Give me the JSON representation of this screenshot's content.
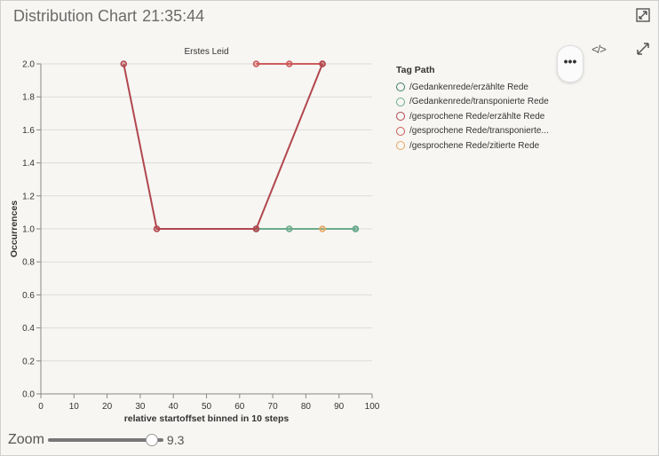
{
  "window": {
    "title": "Distribution Chart",
    "time": "21:35:44"
  },
  "icons": {
    "minimize": "minimize-icon",
    "code": "code-icon",
    "expand": "expand-icon",
    "menu": "more-options-icon"
  },
  "menu_label": "•••",
  "code_label": "</>",
  "zoom": {
    "label": "Zoom",
    "value": "9.3",
    "fraction": 0.93
  },
  "legend": {
    "title": "Tag Path",
    "items": [
      {
        "label": "/Gedankenrede/erzählte Rede",
        "color": "#3d7d6f"
      },
      {
        "label": "/Gedankenrede/transponierte Rede",
        "color": "#6bab8b"
      },
      {
        "label": "/gesprochene Rede/erzählte Rede",
        "color": "#b2474e"
      },
      {
        "label": "/gesprochene Rede/transponierte...",
        "color": "#cd5c5c"
      },
      {
        "label": "/gesprochene Rede/zitierte Rede",
        "color": "#e6a861"
      }
    ]
  },
  "chart_data": {
    "type": "line",
    "title": "Erstes Leid",
    "xlabel": "relative startoffset binned in 10 steps",
    "ylabel": "Occurrences",
    "xlim": [
      0,
      100
    ],
    "ylim": [
      0,
      2
    ],
    "xticks": [
      0,
      10,
      20,
      30,
      40,
      50,
      60,
      70,
      80,
      90,
      100
    ],
    "yticks": [
      0.0,
      0.2,
      0.4,
      0.6,
      0.8,
      1.0,
      1.2,
      1.4,
      1.6,
      1.8,
      2.0
    ],
    "ytick_labels": [
      "0.0",
      "0.2",
      "0.4",
      "0.6",
      "0.8",
      "1.0",
      "1.2",
      "1.4",
      "1.6",
      "1.8",
      "2.0"
    ],
    "grid": true,
    "legend_position": "right",
    "series": [
      {
        "name": "/Gedankenrede/erzählte Rede",
        "color": "#3d7d6f",
        "points": [
          [
            65,
            1
          ],
          [
            95,
            1
          ]
        ]
      },
      {
        "name": "/Gedankenrede/transponierte Rede",
        "color": "#6bab8b",
        "points": [
          [
            65,
            1
          ],
          [
            75,
            1
          ],
          [
            95,
            1
          ]
        ]
      },
      {
        "name": "/gesprochene Rede/zitierte Rede",
        "color": "#e6a861",
        "points": [
          [
            85,
            1
          ]
        ]
      },
      {
        "name": "/gesprochene Rede/transponierte...",
        "color": "#cd5c5c",
        "points": [
          [
            65,
            2
          ],
          [
            75,
            2
          ],
          [
            85,
            2
          ]
        ]
      },
      {
        "name": "/gesprochene Rede/erzählte Rede",
        "color": "#b2474e",
        "points": [
          [
            25,
            2
          ],
          [
            35,
            1
          ],
          [
            65,
            1
          ],
          [
            85,
            2
          ]
        ]
      }
    ]
  }
}
